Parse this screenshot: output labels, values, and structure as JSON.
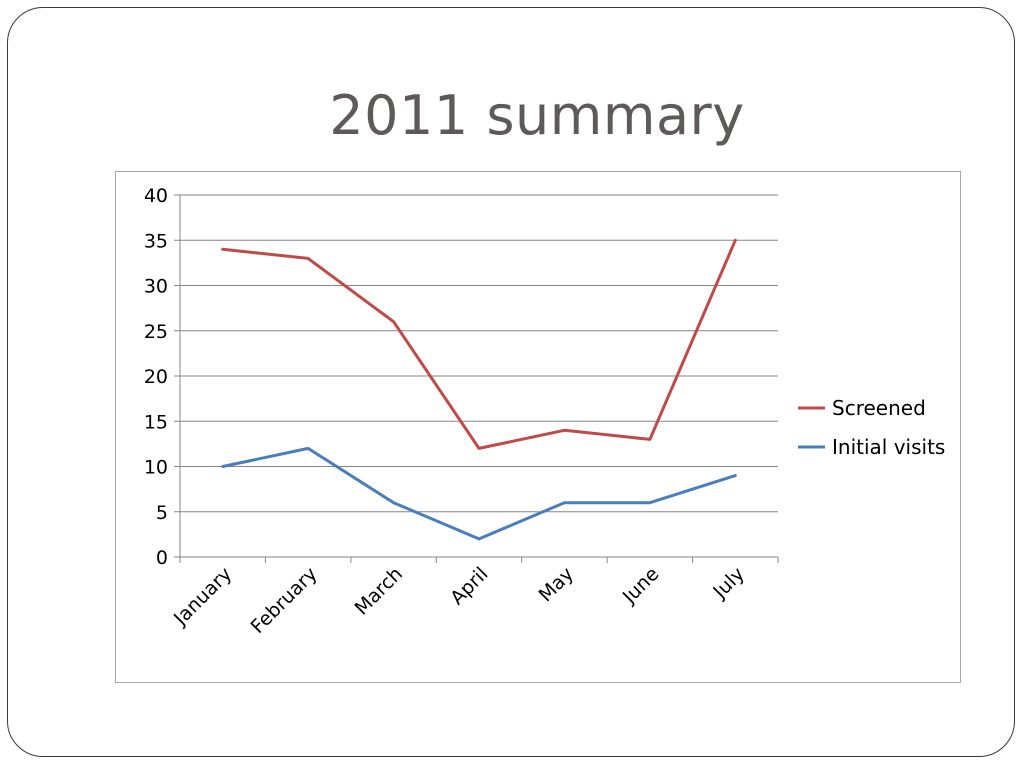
{
  "slide": {
    "title": "2011 summary"
  },
  "chart_data": {
    "type": "line",
    "title": "",
    "xlabel": "",
    "ylabel": "",
    "categories": [
      "January",
      "February",
      "March",
      "April",
      "May",
      "June",
      "July"
    ],
    "ylim": [
      0,
      40
    ],
    "yticks": [
      0,
      5,
      10,
      15,
      20,
      25,
      30,
      35,
      40
    ],
    "grid": true,
    "legend": "right",
    "series": [
      {
        "name": "Screened",
        "color": "#be4b48",
        "values": [
          34,
          33,
          26,
          12,
          14,
          13,
          35
        ]
      },
      {
        "name": "Initial visits",
        "color": "#4a7ebb",
        "values": [
          10,
          12,
          6,
          2,
          6,
          6,
          9
        ]
      }
    ]
  }
}
